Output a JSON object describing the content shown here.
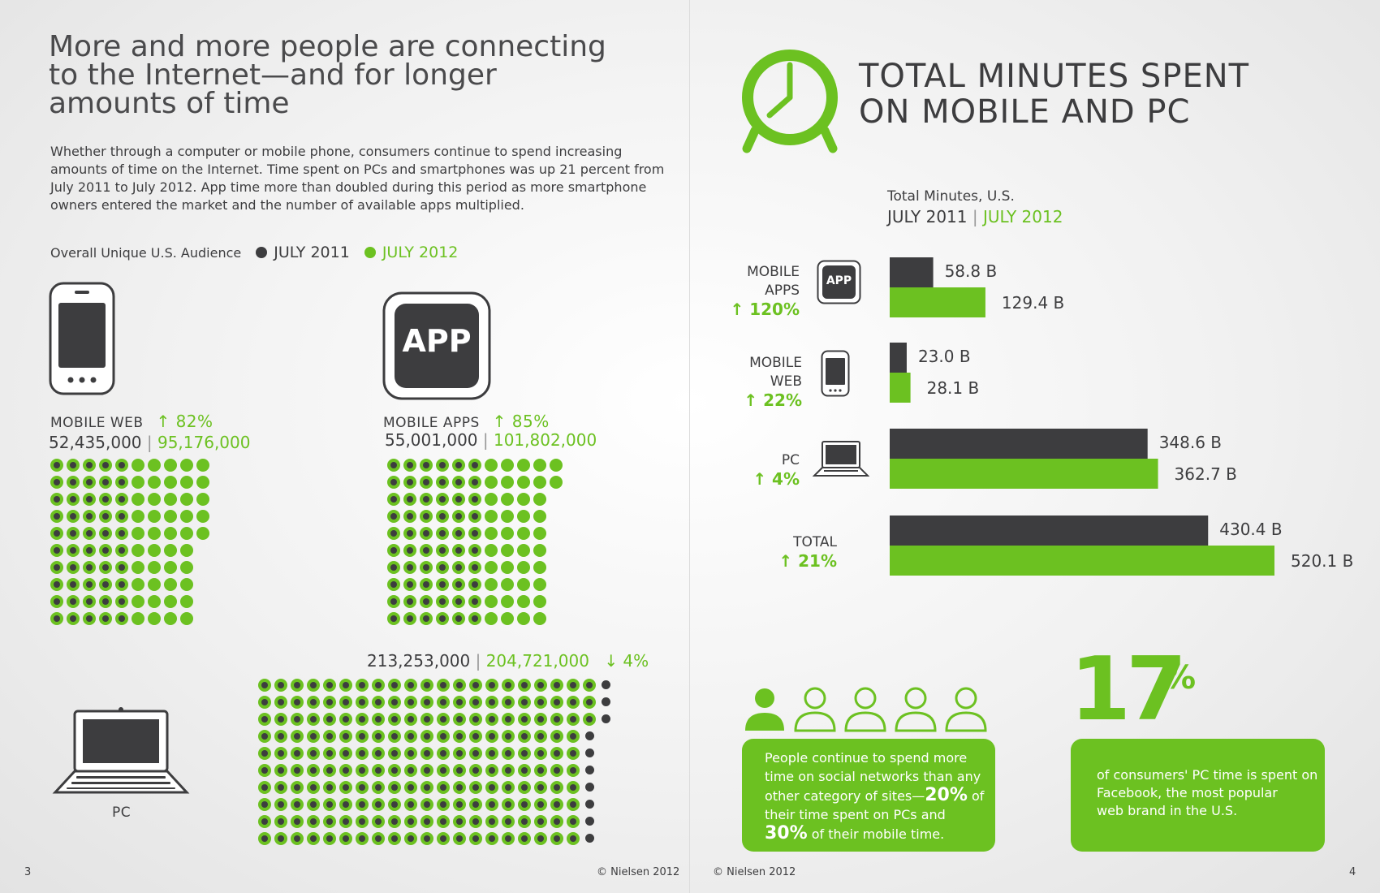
{
  "left": {
    "title_lines": [
      "More and more people are connecting",
      "to the Internet—and for longer",
      "amounts of time"
    ],
    "body_lines": [
      "Whether through a computer or mobile phone, consumers continue to spend increasing",
      "amounts of time on the Internet.  Time spent on PCs and smartphones was up 21 percent from",
      "July 2011 to July 2012.  App time more than doubled during this period as more smartphone",
      "owners entered the market and the number of available apps multiplied."
    ],
    "legend": {
      "label": "Overall Unique U.S. Audience",
      "july2011": "JULY 2011",
      "july2012": "JULY 2012"
    },
    "mobile_web": {
      "label": "MOBILE WEB",
      "change": "↑ 82%",
      "val2011": "52,435,000",
      "sep": " | ",
      "val2012": "95,176,000",
      "icon": "smartphone-icon"
    },
    "mobile_apps": {
      "label": "MOBILE APPS",
      "change": "↑ 85%",
      "val2011": "55,001,000",
      "sep": " | ",
      "val2012": "101,802,000",
      "icon_text": "APP"
    },
    "pc": {
      "label": "PC",
      "change": "↓ 4%",
      "val2011": "213,253,000",
      "sep": " | ",
      "val2012": "204,721,000",
      "icon": "laptop-icon"
    },
    "page_number": "3",
    "copyright": "© Nielsen 2012"
  },
  "right": {
    "title_lines": [
      "TOTAL MINUTES SPENT",
      "ON MOBILE AND PC"
    ],
    "legend_title": "Total Minutes, U.S.",
    "legend_2011": "JULY 2011",
    "legend_sep": " | ",
    "legend_2012": "JULY 2012",
    "app_icon_text": "APP",
    "social": {
      "text_lines": [
        "People continue to spend more",
        "time on social networks than any"
      ],
      "line3_a": "other category of sites—",
      "line3_b": "20%",
      "line3_c": " of",
      "line4": "their time spent on PCs and",
      "line5_a": "30%",
      "line5_b": " of their mobile time."
    },
    "facebook": {
      "big_number": "17",
      "percent_sign": "%",
      "text_lines": [
        "of consumers' PC time is spent on",
        "Facebook, the most popular",
        "web brand in the U.S."
      ]
    },
    "copyright": "© Nielsen 2012",
    "page_number": "4"
  },
  "colors": {
    "green": "#6cc121",
    "dark": "#3d3d3f"
  },
  "chart_data": {
    "type": "bar",
    "title": "Total Minutes, U.S.",
    "units": "B",
    "categories": [
      "MOBILE APPS",
      "MOBILE WEB",
      "PC",
      "TOTAL"
    ],
    "changes": [
      "↑ 120%",
      "↑ 22%",
      "↑ 4%",
      "↑ 21%"
    ],
    "series": [
      {
        "name": "JULY 2011",
        "values": [
          58.8,
          23.0,
          348.6,
          430.4
        ],
        "labels": [
          "58.8 B",
          "23.0 B",
          "348.6 B",
          "430.4 B"
        ]
      },
      {
        "name": "JULY 2012",
        "values": [
          129.4,
          28.1,
          362.7,
          520.1
        ],
        "labels": [
          "129.4 B",
          "28.1 B",
          "362.7 B",
          "520.1 B"
        ]
      }
    ]
  }
}
